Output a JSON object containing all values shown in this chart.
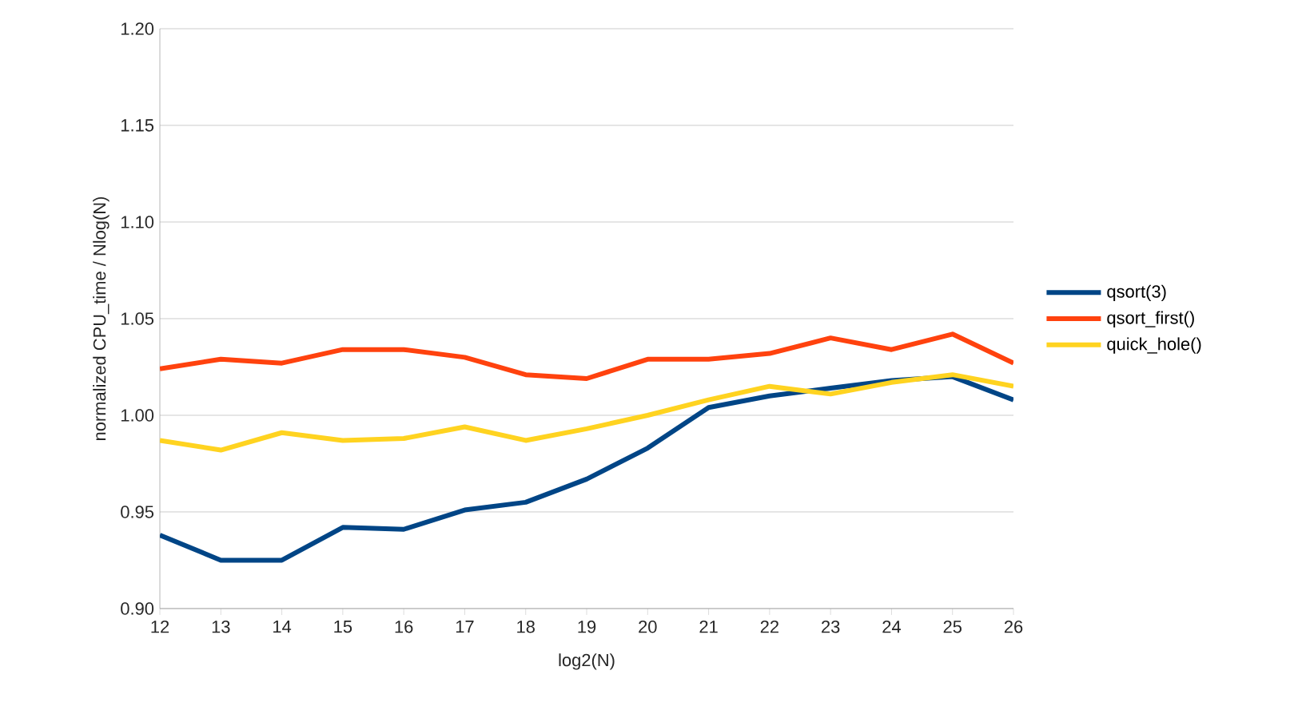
{
  "chart_data": {
    "type": "line",
    "xlabel": "log2(N)",
    "ylabel": "normalized CPU_time / Nlog(N)",
    "x": [
      12,
      13,
      14,
      15,
      16,
      17,
      18,
      19,
      20,
      21,
      22,
      23,
      24,
      25,
      26
    ],
    "series": [
      {
        "name": "qsort(3)",
        "color": "#004586",
        "values": [
          0.938,
          0.925,
          0.925,
          0.942,
          0.941,
          0.951,
          0.955,
          0.967,
          0.983,
          1.004,
          1.01,
          1.014,
          1.018,
          1.02,
          1.008
        ]
      },
      {
        "name": "qsort_first()",
        "color": "#ff420e",
        "values": [
          1.024,
          1.029,
          1.027,
          1.034,
          1.034,
          1.03,
          1.021,
          1.019,
          1.029,
          1.029,
          1.032,
          1.04,
          1.034,
          1.042,
          1.027
        ]
      },
      {
        "name": "quick_hole()",
        "color": "#ffd320",
        "values": [
          0.987,
          0.982,
          0.991,
          0.987,
          0.988,
          0.994,
          0.987,
          0.993,
          1.0,
          1.008,
          1.015,
          1.011,
          1.017,
          1.021,
          1.015
        ]
      }
    ],
    "xlim": [
      12,
      26
    ],
    "xticks": [
      12,
      13,
      14,
      15,
      16,
      17,
      18,
      19,
      20,
      21,
      22,
      23,
      24,
      25,
      26
    ],
    "ylim": [
      0.9,
      1.2
    ],
    "yticks": [
      {
        "value": 0.9,
        "label": "0.90"
      },
      {
        "value": 0.95,
        "label": "0.95"
      },
      {
        "value": 1.0,
        "label": "1.00"
      },
      {
        "value": 1.05,
        "label": "1.05"
      },
      {
        "value": 1.1,
        "label": "1.10"
      },
      {
        "value": 1.15,
        "label": "1.15"
      },
      {
        "value": 1.2,
        "label": "1.20"
      }
    ],
    "grid": "y",
    "legend": "right",
    "marker": "none",
    "line_style": "solid"
  }
}
